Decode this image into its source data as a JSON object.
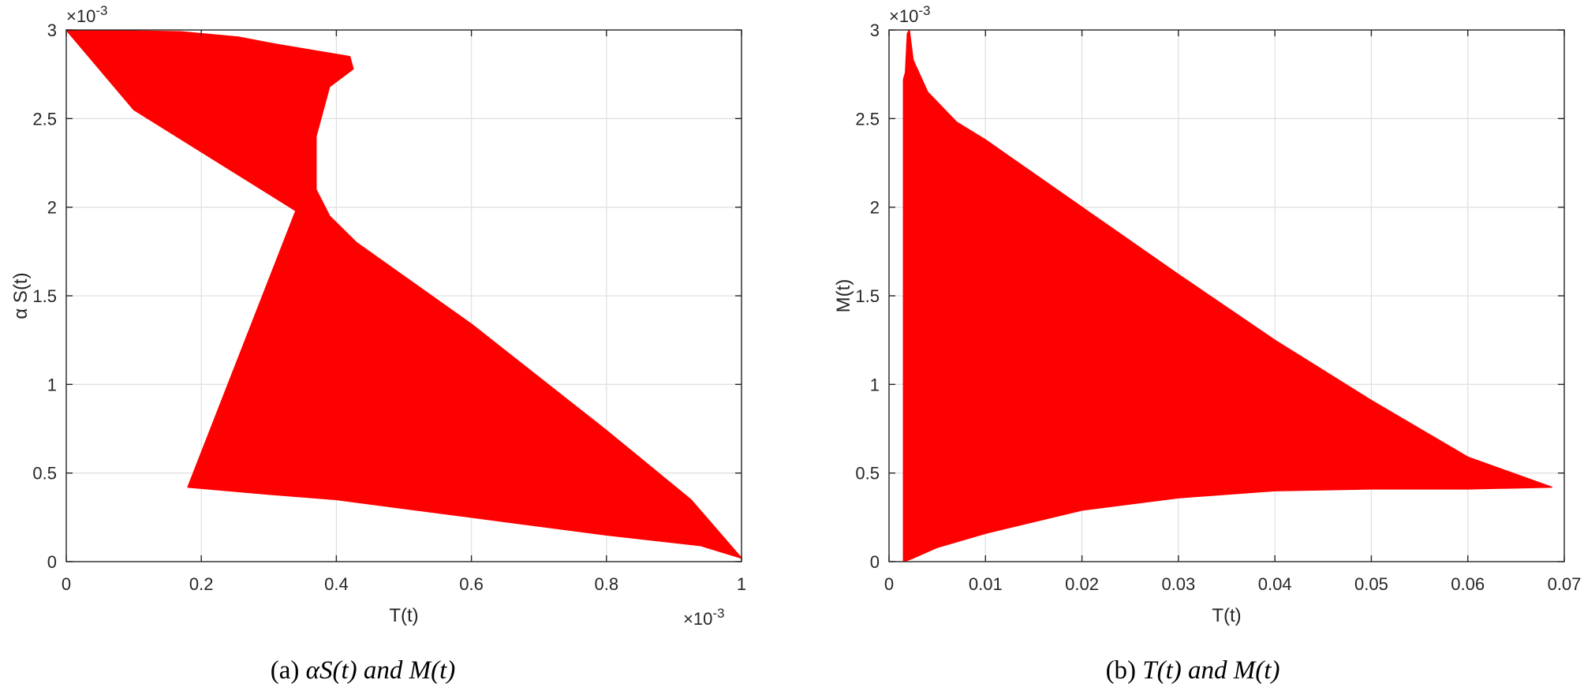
{
  "colors": {
    "series": "#ff0000",
    "axis": "#262626",
    "grid": "#e1e1e1"
  },
  "chart_data": [
    {
      "type": "line",
      "xlabel": "T(t)",
      "ylabel": "α S(t)",
      "xlim": [
        0,
        0.001
      ],
      "ylim": [
        0,
        0.003
      ],
      "x_ticks": [
        "0",
        "0.2",
        "0.4",
        "0.6",
        "0.8",
        "1"
      ],
      "y_ticks": [
        "0",
        "0.5",
        "1",
        "1.5",
        "2",
        "2.5",
        "3"
      ],
      "x_exponent": "×10",
      "x_exponent_power": "-3",
      "y_exponent": "×10",
      "y_exponent_power": "-3",
      "grid": true,
      "caption_prefix": "(a) ",
      "caption_math": [
        "αS(t)",
        " and ",
        "M(t)"
      ],
      "series": [
        {
          "color": "#ff0000",
          "envelope_points": [
            [
              0.0,
              0.003
            ],
            [
              0.00017,
              0.00299
            ],
            [
              0.000255,
              0.00296
            ],
            [
              0.00031,
              0.00292
            ],
            [
              0.00042,
              0.00285
            ],
            [
              0.000425,
              0.00278
            ],
            [
              0.00039,
              0.00268
            ],
            [
              0.00037,
              0.0024
            ],
            [
              0.00037,
              0.0021
            ],
            [
              0.00039,
              0.00195
            ],
            [
              0.00043,
              0.0018
            ],
            [
              0.0006,
              0.00134
            ],
            [
              0.0008,
              0.00074
            ],
            [
              0.000925,
              0.00035
            ],
            [
              0.001,
              2e-05
            ],
            [
              0.00094,
              9e-05
            ],
            [
              0.0008,
              0.00015
            ],
            [
              0.0006,
              0.00025
            ],
            [
              0.0004,
              0.00035
            ],
            [
              0.0003,
              0.00038
            ],
            [
              0.00018,
              0.00042
            ],
            [
              0.00034,
              0.00198
            ],
            [
              0.0001,
              0.00255
            ],
            [
              0.0,
              0.003
            ]
          ]
        }
      ]
    },
    {
      "type": "line",
      "xlabel": "T(t)",
      "ylabel": "M(t)",
      "xlim": [
        0,
        0.07
      ],
      "ylim": [
        0,
        0.003
      ],
      "x_ticks": [
        "0",
        "0.01",
        "0.02",
        "0.03",
        "0.04",
        "0.05",
        "0.06",
        "0.07"
      ],
      "y_ticks": [
        "0",
        "0.5",
        "1",
        "1.5",
        "2",
        "2.5",
        "3"
      ],
      "y_exponent": "×10",
      "y_exponent_power": "-3",
      "grid": true,
      "caption_prefix": "(b) ",
      "caption_math": [
        "T(t)",
        " and ",
        "M(t)"
      ],
      "series": [
        {
          "color": "#ff0000",
          "envelope_points": [
            [
              0.0015,
              0.0
            ],
            [
              0.0015,
              0.00272
            ],
            [
              0.0017,
              0.00276
            ],
            [
              0.0019,
              0.00298
            ],
            [
              0.0021,
              0.003
            ],
            [
              0.0025,
              0.00283
            ],
            [
              0.004,
              0.00265
            ],
            [
              0.007,
              0.00248
            ],
            [
              0.01,
              0.00238
            ],
            [
              0.02,
              0.002
            ],
            [
              0.03,
              0.00162
            ],
            [
              0.04,
              0.00125
            ],
            [
              0.05,
              0.00091
            ],
            [
              0.06,
              0.00059
            ],
            [
              0.0687,
              0.00042
            ],
            [
              0.06,
              0.00041
            ],
            [
              0.05,
              0.00041
            ],
            [
              0.04,
              0.0004
            ],
            [
              0.03,
              0.00036
            ],
            [
              0.02,
              0.00029
            ],
            [
              0.01,
              0.00016
            ],
            [
              0.005,
              8e-05
            ],
            [
              0.0025,
              2e-05
            ],
            [
              0.0015,
              0.0
            ]
          ]
        }
      ]
    }
  ]
}
